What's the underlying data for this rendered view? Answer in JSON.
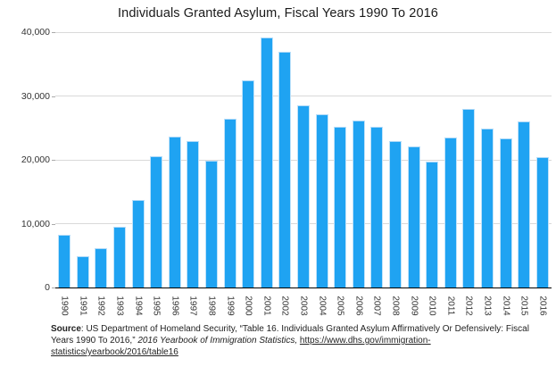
{
  "title": "Individuals Granted Asylum, Fiscal Years 1990 To 2016",
  "chart_data": {
    "type": "bar",
    "title": "Individuals Granted Asylum, Fiscal Years 1990 To 2016",
    "xlabel": "",
    "ylabel": "",
    "categories": [
      "1990",
      "1991",
      "1992",
      "1993",
      "1994",
      "1995",
      "1996",
      "1997",
      "1998",
      "1999",
      "2000",
      "2001",
      "2002",
      "2003",
      "2004",
      "2005",
      "2006",
      "2007",
      "2008",
      "2009",
      "2010",
      "2011",
      "2012",
      "2013",
      "2014",
      "2015",
      "2016"
    ],
    "values": [
      8300,
      4900,
      6200,
      9500,
      13700,
      20600,
      23600,
      22900,
      19900,
      26500,
      32500,
      39200,
      36900,
      28600,
      27200,
      25200,
      26200,
      25200,
      22900,
      22100,
      19700,
      23500,
      28000,
      24900,
      23300,
      26000,
      20400
    ],
    "ylim": [
      0,
      40000
    ],
    "yticks": [
      0,
      10000,
      20000,
      30000,
      40000
    ],
    "ytick_labels": [
      "0",
      "10,000",
      "20,000",
      "30,000",
      "40,000"
    ],
    "grid": true,
    "legend": "none",
    "bar_color": "#1fa3f2"
  },
  "colors": {
    "bar": "#1fa3f2",
    "bar_edge": "#aed9f8",
    "gridline": "#d9d9d9",
    "axis": "#000000",
    "text": "#222222"
  },
  "source": {
    "label": "Source",
    "text_before_italic": ": US Department of Homeland Security, “Table 16. Individuals Granted Asylum Affirmatively Or Defensively: Fiscal Years 1990 To 2016,” ",
    "text_italic": "2016 Yearbook of Immigration Statistics,",
    "link_text": "https://www.dhs.gov/immigration-statistics/yearbook/2016/table16"
  }
}
